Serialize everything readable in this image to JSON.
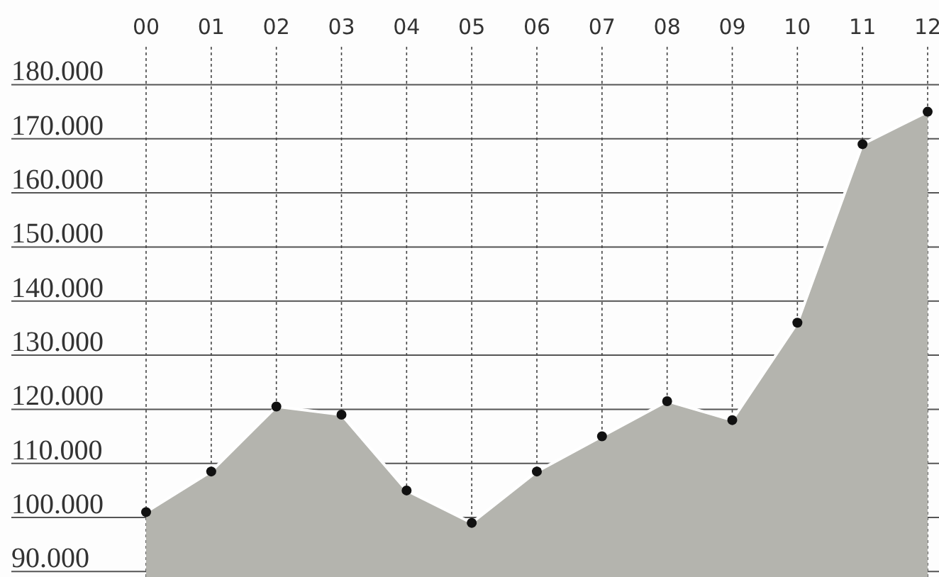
{
  "chart_data": {
    "type": "area",
    "categories": [
      "00",
      "01",
      "02",
      "03",
      "04",
      "05",
      "06",
      "07",
      "08",
      "09",
      "10",
      "11",
      "12"
    ],
    "values": [
      101000,
      108500,
      120500,
      119000,
      105000,
      99000,
      108500,
      115000,
      121500,
      118000,
      136000,
      169000,
      175000
    ],
    "color": "#b4b4ae",
    "ylim": [
      89000,
      187000
    ],
    "yticks": [
      {
        "value": 90000,
        "label": "90.000"
      },
      {
        "value": 100000,
        "label": "100.000"
      },
      {
        "value": 110000,
        "label": "110.000"
      },
      {
        "value": 120000,
        "label": "120.000"
      },
      {
        "value": 130000,
        "label": "130.000"
      },
      {
        "value": 140000,
        "label": "140.000"
      },
      {
        "value": 150000,
        "label": "150.000"
      },
      {
        "value": 160000,
        "label": "160.000"
      },
      {
        "value": 170000,
        "label": "170.000"
      },
      {
        "value": 180000,
        "label": "180.000"
      }
    ],
    "grid": true,
    "marker": "circle"
  }
}
